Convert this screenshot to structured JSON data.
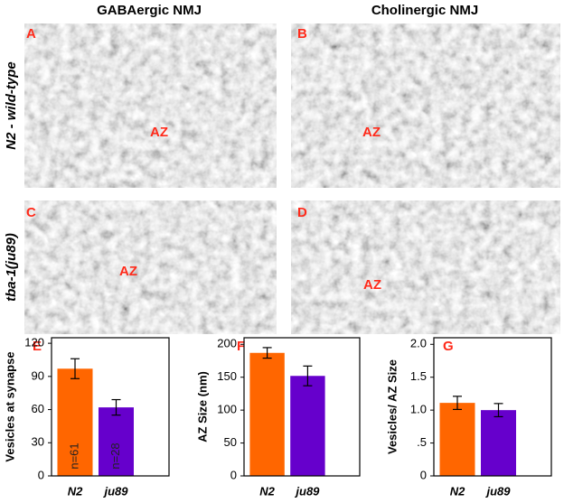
{
  "columns": [
    "GABAergic NMJ",
    "Cholinergic NMJ"
  ],
  "rows": [
    "N2 - wild-type",
    "tba-1(ju89)"
  ],
  "panels": [
    {
      "letter": "A",
      "label": "AZ"
    },
    {
      "letter": "B",
      "label": "AZ"
    },
    {
      "letter": "C",
      "label": "AZ"
    },
    {
      "letter": "D",
      "label": "AZ"
    }
  ],
  "chart_data": [
    {
      "type": "bar",
      "letter": "E",
      "ylabel": "Vesicles at synapse",
      "categories": [
        "N2",
        "ju89"
      ],
      "values": [
        97,
        62
      ],
      "errors": [
        9,
        7
      ],
      "colors": [
        "#ff6600",
        "#6600cc"
      ],
      "bar_labels": [
        "n=61",
        "n=28"
      ],
      "ylim": [
        0,
        125
      ],
      "yticks": [
        0,
        30,
        60,
        90,
        120
      ]
    },
    {
      "type": "bar",
      "letter": "F",
      "ylabel": "AZ Size (nm)",
      "categories": [
        "N2",
        "ju89"
      ],
      "values": [
        187,
        152
      ],
      "errors": [
        8,
        15
      ],
      "colors": [
        "#ff6600",
        "#6600cc"
      ],
      "ylim": [
        0,
        210
      ],
      "yticks": [
        0,
        50,
        100,
        150,
        200
      ]
    },
    {
      "type": "bar",
      "letter": "G",
      "ylabel": "Vesicles/ AZ Size",
      "categories": [
        "N2",
        "ju89"
      ],
      "values": [
        1.11,
        1.0
      ],
      "errors": [
        0.1,
        0.1
      ],
      "colors": [
        "#ff6600",
        "#6600cc"
      ],
      "ylim": [
        0,
        2.1
      ],
      "yticks": [
        0,
        {
          "value": 0.5,
          "label": ".5"
        },
        {
          "value": 1,
          "label": "1.0"
        },
        1.5,
        {
          "value": 2,
          "label": "2.0"
        }
      ]
    }
  ]
}
